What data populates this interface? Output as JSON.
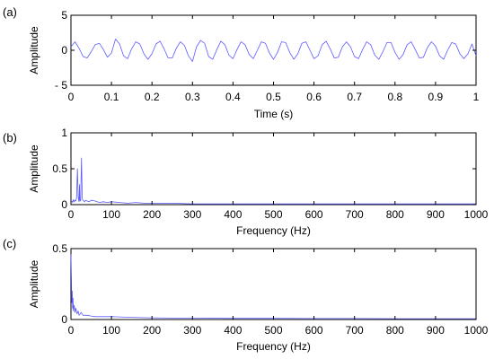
{
  "chart_data": [
    {
      "type": "line",
      "panel_label": "(a)",
      "xlabel": "Time (s)",
      "ylabel": "Amplitude",
      "xlim": [
        0,
        1
      ],
      "ylim": [
        -5,
        5
      ],
      "xticks": [
        0,
        0.1,
        0.2,
        0.3,
        0.4,
        0.5,
        0.6,
        0.7,
        0.8,
        0.9,
        1
      ],
      "xtick_labels": [
        "0",
        "0.1",
        "0.2",
        "0.3",
        "0.4",
        "0.5",
        "0.6",
        "0.7",
        "0.8",
        "0.9",
        "1"
      ],
      "yticks": [
        -5,
        0,
        5
      ],
      "ytick_labels": [
        "- 5",
        "0",
        "5"
      ],
      "grid": false,
      "series": [
        {
          "color": "#5b5bff",
          "x": [
            0,
            0.01,
            0.02,
            0.03,
            0.04,
            0.05,
            0.06,
            0.07,
            0.08,
            0.09,
            0.1,
            0.11,
            0.12,
            0.13,
            0.14,
            0.15,
            0.16,
            0.17,
            0.18,
            0.19,
            0.2,
            0.21,
            0.22,
            0.23,
            0.24,
            0.25,
            0.26,
            0.27,
            0.28,
            0.29,
            0.3,
            0.31,
            0.32,
            0.33,
            0.34,
            0.35,
            0.36,
            0.37,
            0.38,
            0.39,
            0.4,
            0.41,
            0.42,
            0.43,
            0.44,
            0.45,
            0.46,
            0.47,
            0.48,
            0.49,
            0.5,
            0.51,
            0.52,
            0.53,
            0.54,
            0.55,
            0.56,
            0.57,
            0.58,
            0.59,
            0.6,
            0.61,
            0.62,
            0.63,
            0.64,
            0.65,
            0.66,
            0.67,
            0.68,
            0.69,
            0.7,
            0.71,
            0.72,
            0.73,
            0.74,
            0.75,
            0.76,
            0.77,
            0.78,
            0.79,
            0.8,
            0.81,
            0.82,
            0.83,
            0.84,
            0.85,
            0.86,
            0.87,
            0.88,
            0.89,
            0.9,
            0.91,
            0.92,
            0.93,
            0.94,
            0.95,
            0.96,
            0.97,
            0.98,
            0.99,
            1
          ],
          "y": [
            0.5,
            1.2,
            0.3,
            -0.9,
            -1.1,
            -0.2,
            0.8,
            1.0,
            0.1,
            -1.0,
            -0.4,
            1.6,
            0.9,
            -0.8,
            -1.2,
            0.2,
            1.2,
            0.9,
            -0.5,
            -1.3,
            -0.5,
            0.9,
            1.3,
            0.2,
            -1.1,
            -1.1,
            0.3,
            1.2,
            0.7,
            -0.8,
            -1.6,
            0.5,
            1.4,
            1.0,
            -0.9,
            -1.3,
            0.1,
            1.3,
            0.8,
            -0.7,
            -1.2,
            0.1,
            1.2,
            0.8,
            -0.6,
            -1.2,
            0.0,
            1.2,
            1.0,
            -0.4,
            -1.3,
            -0.3,
            1.2,
            1.1,
            -0.3,
            -1.3,
            -0.5,
            1.0,
            1.2,
            0.0,
            -1.2,
            -0.8,
            0.8,
            1.3,
            0.2,
            -1.1,
            -1.0,
            0.5,
            1.2,
            0.5,
            -0.9,
            -1.2,
            0.1,
            1.2,
            0.8,
            -0.7,
            -1.3,
            -0.2,
            1.1,
            1.1,
            -0.3,
            -1.3,
            -0.6,
            0.8,
            1.2,
            0.1,
            -1.1,
            -1.0,
            0.4,
            1.2,
            0.6,
            -0.8,
            -1.3,
            0.0,
            1.1,
            0.9,
            -0.5,
            -1.2,
            -0.5,
            0.9,
            -0.8
          ]
        }
      ]
    },
    {
      "type": "line",
      "panel_label": "(b)",
      "xlabel": "Frequency (Hz)",
      "ylabel": "Amplitude",
      "xlim": [
        0,
        1000
      ],
      "ylim": [
        0,
        1
      ],
      "xticks": [
        0,
        100,
        200,
        300,
        400,
        500,
        600,
        700,
        800,
        900,
        1000
      ],
      "xtick_labels": [
        "0",
        "100",
        "200",
        "300",
        "400",
        "500",
        "600",
        "700",
        "800",
        "900",
        "1000"
      ],
      "yticks": [
        0,
        0.5,
        1
      ],
      "ytick_labels": [
        "0",
        "0.5",
        "1"
      ],
      "grid": false,
      "series": [
        {
          "color": "#5b5bff",
          "x": [
            0,
            2,
            4,
            6,
            8,
            10,
            12,
            14,
            16,
            18,
            20,
            21,
            22,
            24,
            26,
            28,
            30,
            32,
            34,
            36,
            40,
            45,
            50,
            60,
            70,
            80,
            90,
            100,
            120,
            140,
            160,
            180,
            200,
            250,
            300,
            400,
            500,
            600,
            700,
            800,
            900,
            1000
          ],
          "y": [
            0.06,
            0.05,
            0.03,
            0.07,
            0.04,
            0.06,
            0.05,
            0.1,
            0.5,
            0.1,
            0.04,
            0.28,
            0.06,
            0.05,
            0.65,
            0.08,
            0.06,
            0.05,
            0.04,
            0.06,
            0.05,
            0.04,
            0.06,
            0.05,
            0.03,
            0.04,
            0.03,
            0.04,
            0.03,
            0.02,
            0.03,
            0.02,
            0.02,
            0.02,
            0.01,
            0.01,
            0.01,
            0.01,
            0.01,
            0.01,
            0.01,
            0.01
          ]
        }
      ]
    },
    {
      "type": "line",
      "panel_label": "(c)",
      "xlabel": "Frequency (Hz)",
      "ylabel": "Amplitude",
      "xlim": [
        0,
        1000
      ],
      "ylim": [
        0,
        0.5
      ],
      "xticks": [
        0,
        100,
        200,
        300,
        400,
        500,
        600,
        700,
        800,
        900,
        1000
      ],
      "xtick_labels": [
        "0",
        "100",
        "200",
        "300",
        "400",
        "500",
        "600",
        "700",
        "800",
        "900",
        "1000"
      ],
      "yticks": [
        0,
        0.5
      ],
      "ytick_labels": [
        "0",
        "0.5"
      ],
      "grid": false,
      "series": [
        {
          "color": "#5b5bff",
          "x": [
            0,
            1,
            2,
            3,
            4,
            5,
            6,
            8,
            10,
            12,
            15,
            18,
            20,
            25,
            30,
            40,
            50,
            60,
            80,
            100,
            150,
            200,
            250,
            300,
            400,
            500,
            600,
            700,
            800,
            900,
            1000
          ],
          "y": [
            0.46,
            0.3,
            0.12,
            0.2,
            0.08,
            0.15,
            0.06,
            0.1,
            0.05,
            0.08,
            0.04,
            0.06,
            0.03,
            0.05,
            0.03,
            0.03,
            0.025,
            0.02,
            0.02,
            0.02,
            0.015,
            0.012,
            0.01,
            0.01,
            0.008,
            0.008,
            0.007,
            0.007,
            0.006,
            0.006,
            0.006
          ]
        }
      ]
    }
  ]
}
